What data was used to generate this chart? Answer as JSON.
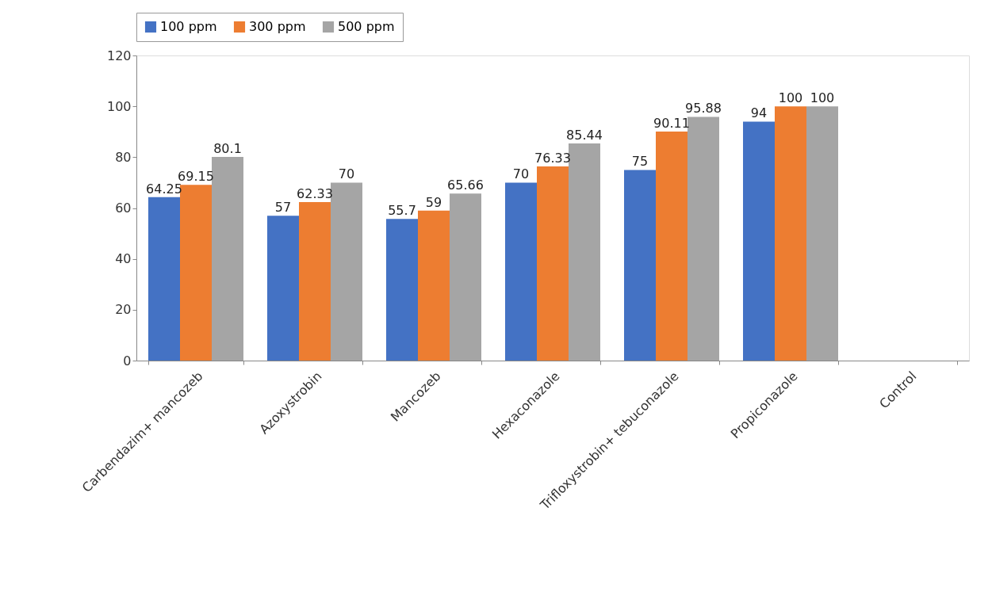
{
  "chart_data": {
    "type": "bar",
    "categories": [
      "Carbendazim+ mancozeb",
      "Azoxystrobin",
      "Mancozeb",
      "Hexaconazole",
      "Trifloxystrobin+ tebuconazole",
      "Propiconazole",
      "Control"
    ],
    "series": [
      {
        "name": "100 ppm",
        "color": "#4472c4",
        "values": [
          64.25,
          57,
          55.7,
          70,
          75,
          94,
          null
        ]
      },
      {
        "name": "300 ppm",
        "color": "#ed7d31",
        "values": [
          69.15,
          62.33,
          59,
          76.33,
          90.11,
          100,
          null
        ]
      },
      {
        "name": "500 ppm",
        "color": "#a5a5a5",
        "values": [
          80.1,
          70,
          65.66,
          85.44,
          95.88,
          100,
          null
        ]
      }
    ],
    "ylim": [
      0,
      120
    ],
    "yticks": [
      0,
      20,
      40,
      60,
      80,
      100,
      120
    ],
    "grid": false,
    "legend": "top",
    "data_labels": true
  }
}
